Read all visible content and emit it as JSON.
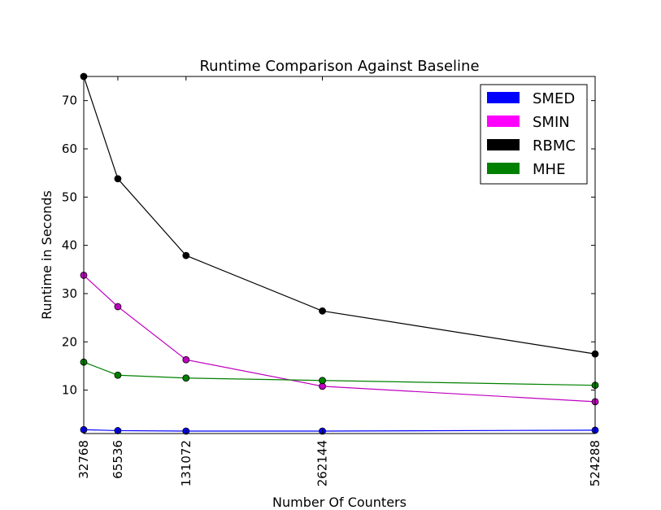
{
  "chart_data": {
    "type": "line",
    "title": "Runtime Comparison Against Baseline",
    "xlabel": "Number Of Counters",
    "ylabel": "Runtime in Seconds",
    "x": [
      32768,
      65536,
      131072,
      262144,
      524288
    ],
    "x_tick_labels": [
      "32768",
      "65536",
      "131072",
      "262144",
      "524288"
    ],
    "xlim": [
      32768,
      524288
    ],
    "ylim": [
      1,
      75
    ],
    "y_ticks": [
      10,
      20,
      30,
      40,
      50,
      60,
      70
    ],
    "y_tick_labels": [
      "10",
      "20",
      "30",
      "40",
      "50",
      "60",
      "70"
    ],
    "grid": false,
    "legend_position": "top-right",
    "series": [
      {
        "name": "SMED",
        "color": "#0000ff",
        "values": [
          1.8,
          1.6,
          1.5,
          1.5,
          1.7
        ]
      },
      {
        "name": "SMIN",
        "color": "#ff00ff",
        "line_color": "#bf00bf",
        "values": [
          33.8,
          27.3,
          16.3,
          10.8,
          7.6
        ]
      },
      {
        "name": "RBMC",
        "color": "#000000",
        "values": [
          75,
          53.8,
          37.9,
          26.4,
          17.5
        ]
      },
      {
        "name": "MHE",
        "color": "#008000",
        "values": [
          15.8,
          13.1,
          12.5,
          12.0,
          11.0
        ]
      }
    ]
  }
}
